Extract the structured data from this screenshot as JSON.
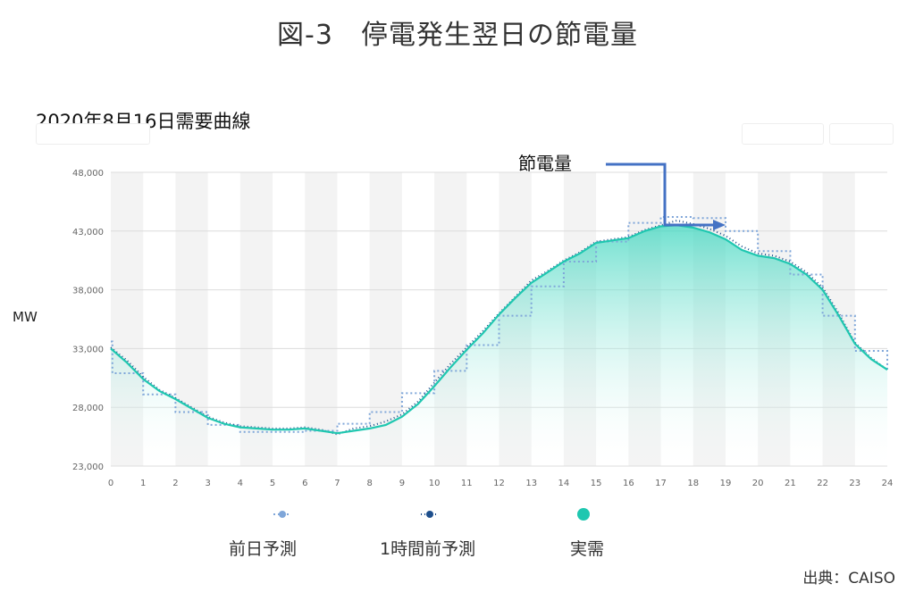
{
  "figure": {
    "title": "図-3　停電発生翌日の節電量",
    "subtitle": "2020年8月16日需要曲線",
    "ylabel": "MW",
    "annotation": "節電量",
    "source": "出典：CAISO"
  },
  "legend": [
    {
      "label": "前日予測",
      "color": "#7fa6d9"
    },
    {
      "label": "1時間前予測",
      "color": "#1e4f8c"
    },
    {
      "label": "実需",
      "color": "#1fc7b0"
    }
  ],
  "chart_data": {
    "type": "area",
    "xlabel": "",
    "ylabel": "MW",
    "xlim": [
      0,
      24
    ],
    "ylim": [
      23000,
      48000
    ],
    "x_ticks": [
      "0",
      "1",
      "2",
      "3",
      "4",
      "5",
      "6",
      "7",
      "8",
      "9",
      "10",
      "11",
      "12",
      "13",
      "14",
      "15",
      "16",
      "17",
      "18",
      "19",
      "20",
      "21",
      "22",
      "23",
      "24"
    ],
    "y_ticks": [
      "23,000",
      "28,000",
      "33,000",
      "38,000",
      "43,000",
      "48,000"
    ],
    "series": [
      {
        "name": "前日予測",
        "style": "dotted-step",
        "x": [
          0,
          0.05,
          1,
          2,
          3,
          4,
          5,
          6,
          7,
          8,
          9,
          10,
          11,
          12,
          13,
          14,
          15,
          16,
          17,
          18,
          19,
          20,
          21,
          22,
          23,
          24
        ],
        "values": [
          33600,
          30900,
          29100,
          27600,
          26500,
          25900,
          25900,
          26000,
          26600,
          27600,
          29200,
          31100,
          33300,
          35800,
          38300,
          40400,
          42100,
          43700,
          44200,
          44100,
          43000,
          41300,
          39300,
          35800,
          32800,
          31200
        ]
      },
      {
        "name": "1時間前予測",
        "style": "dotted",
        "x": [
          0,
          0.5,
          1,
          1.5,
          2,
          2.5,
          3,
          3.5,
          4,
          4.5,
          5,
          5.5,
          6,
          6.5,
          7,
          7.5,
          8,
          8.5,
          9,
          9.5,
          10,
          10.5,
          11,
          11.5,
          12,
          12.5,
          13,
          13.5,
          14,
          14.5,
          15,
          15.5,
          16,
          16.5,
          17,
          17.5,
          18,
          18.5,
          19,
          19.5,
          20,
          20.5,
          21,
          21.5,
          22,
          22.5,
          23,
          23.5,
          24
        ],
        "values": [
          33100,
          32000,
          30600,
          29500,
          28800,
          28000,
          27200,
          26700,
          26400,
          26300,
          26200,
          26200,
          26300,
          26100,
          25700,
          26200,
          26400,
          26800,
          27400,
          28500,
          30100,
          31700,
          33100,
          34500,
          36000,
          37400,
          38800,
          39600,
          40500,
          41200,
          42100,
          42300,
          42500,
          43100,
          43500,
          43900,
          43600,
          43200,
          42600,
          41700,
          41100,
          40900,
          40400,
          39500,
          38200,
          36000,
          33500,
          32200,
          31200
        ]
      },
      {
        "name": "実需",
        "style": "area",
        "x": [
          0,
          0.5,
          1,
          1.5,
          2,
          2.5,
          3,
          3.5,
          4,
          4.5,
          5,
          5.5,
          6,
          6.5,
          7,
          7.5,
          8,
          8.5,
          9,
          9.5,
          10,
          10.5,
          11,
          11.5,
          12,
          12.5,
          13,
          13.5,
          14,
          14.5,
          15,
          15.5,
          16,
          16.5,
          17,
          17.5,
          18,
          18.5,
          19,
          19.5,
          20,
          20.5,
          21,
          21.5,
          22,
          22.5,
          23,
          23.5,
          24
        ],
        "values": [
          33000,
          31800,
          30400,
          29400,
          28700,
          27900,
          27100,
          26600,
          26300,
          26200,
          26100,
          26100,
          26200,
          26000,
          25800,
          26000,
          26200,
          26500,
          27200,
          28300,
          29800,
          31400,
          32900,
          34300,
          35900,
          37300,
          38600,
          39500,
          40400,
          41100,
          42000,
          42200,
          42400,
          43000,
          43400,
          43500,
          43300,
          42900,
          42300,
          41400,
          40900,
          40700,
          40200,
          39300,
          38000,
          35800,
          33400,
          32100,
          31200
        ]
      }
    ]
  }
}
